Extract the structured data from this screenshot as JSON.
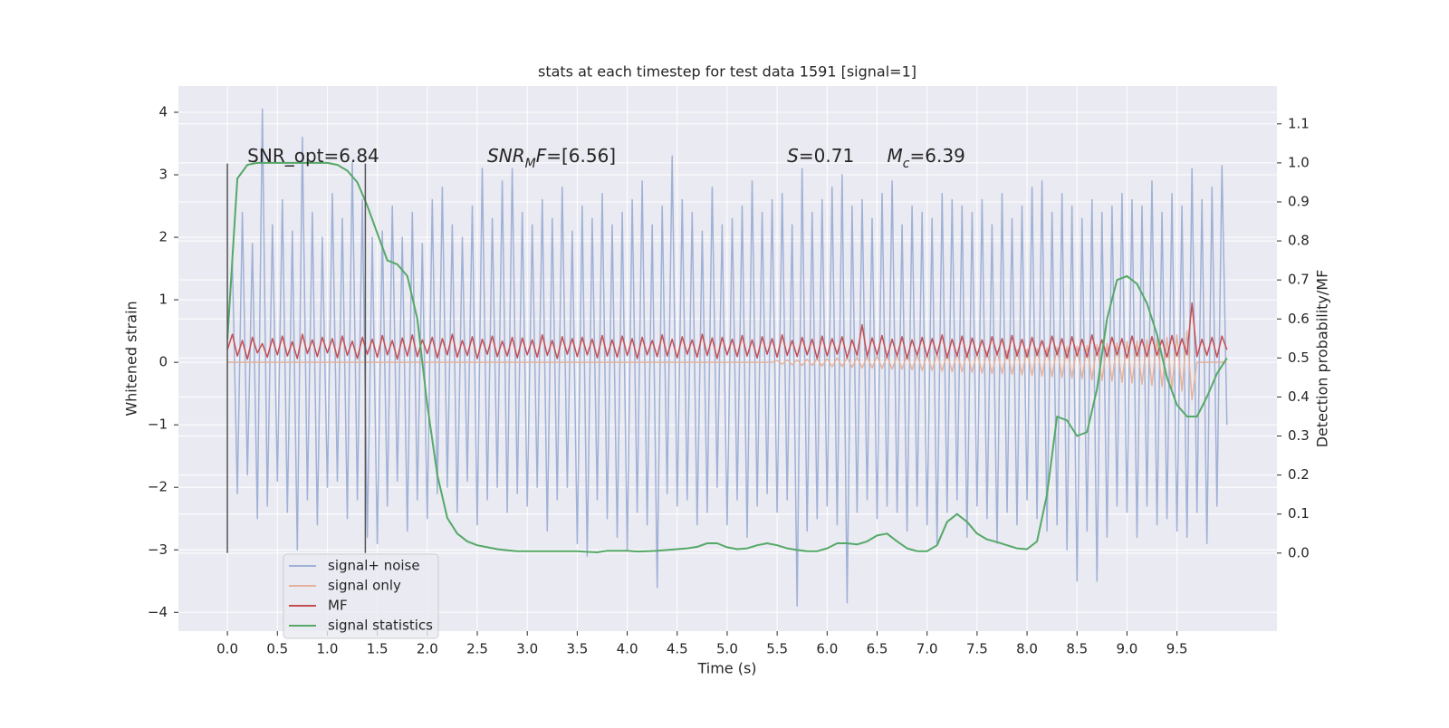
{
  "chart_data": {
    "type": "line",
    "title": "stats at each timestep for test data 1591 [signal=1]",
    "xlabel": "Time (s)",
    "ylabel": "Whitened strain",
    "y2label": "Detection probability/MF",
    "xlim": [
      -0.49,
      10.5
    ],
    "ylim": [
      -4.3,
      4.42
    ],
    "y2lim": [
      -0.2,
      1.197
    ],
    "xticks": [
      {
        "value": 0,
        "label": "0.0"
      },
      0.5,
      {
        "value": 1,
        "label": "1.0"
      },
      1.5,
      {
        "value": 2,
        "label": "2.0"
      },
      2.5,
      {
        "value": 3,
        "label": "3.0"
      },
      3.5,
      {
        "value": 4,
        "label": "4.0"
      },
      4.5,
      {
        "value": 5,
        "label": "5.0"
      },
      5.5,
      {
        "value": 6,
        "label": "6.0"
      },
      6.5,
      {
        "value": 7,
        "label": "7.0"
      },
      7.5,
      {
        "value": 8,
        "label": "8.0"
      },
      8.5,
      {
        "value": 9,
        "label": "9.0"
      },
      9.5
    ],
    "yticks": [
      {
        "value": -4,
        "label": "−4"
      },
      {
        "value": -3,
        "label": "−3"
      },
      {
        "value": -2,
        "label": "−2"
      },
      {
        "value": -1,
        "label": "−1"
      },
      0,
      1,
      2,
      3,
      4
    ],
    "y2ticks": [
      {
        "value": 0,
        "label": "0.0"
      },
      0.1,
      0.2,
      0.3,
      0.4,
      0.5,
      0.6,
      0.7,
      0.8,
      0.9,
      {
        "value": 1,
        "label": "1.0"
      },
      1.1
    ],
    "grid": true,
    "legend": "lower left",
    "x": [
      0,
      0.05,
      0.1,
      0.15,
      0.2,
      0.25,
      0.3,
      0.35,
      0.4,
      0.45,
      0.5,
      0.55,
      0.6,
      0.65,
      0.7,
      0.75,
      0.8,
      0.85,
      0.9,
      0.95,
      1,
      1.05,
      1.1,
      1.15,
      1.2,
      1.25,
      1.3,
      1.35,
      1.4,
      1.45,
      1.5,
      1.55,
      1.6,
      1.65,
      1.7,
      1.75,
      1.8,
      1.85,
      1.9,
      1.95,
      2,
      2.05,
      2.1,
      2.15,
      2.2,
      2.25,
      2.3,
      2.35,
      2.4,
      2.45,
      2.5,
      2.55,
      2.6,
      2.65,
      2.7,
      2.75,
      2.8,
      2.85,
      2.9,
      2.95,
      3,
      3.05,
      3.1,
      3.15,
      3.2,
      3.25,
      3.3,
      3.35,
      3.4,
      3.45,
      3.5,
      3.55,
      3.6,
      3.65,
      3.7,
      3.75,
      3.8,
      3.85,
      3.9,
      3.95,
      4,
      4.05,
      4.1,
      4.15,
      4.2,
      4.25,
      4.3,
      4.35,
      4.4,
      4.45,
      4.5,
      4.55,
      4.6,
      4.65,
      4.7,
      4.75,
      4.8,
      4.85,
      4.9,
      4.95,
      5,
      5.05,
      5.1,
      5.15,
      5.2,
      5.25,
      5.3,
      5.35,
      5.4,
      5.45,
      5.5,
      5.55,
      5.6,
      5.65,
      5.7,
      5.75,
      5.8,
      5.85,
      5.9,
      5.95,
      6,
      6.05,
      6.1,
      6.15,
      6.2,
      6.25,
      6.3,
      6.35,
      6.4,
      6.45,
      6.5,
      6.55,
      6.6,
      6.65,
      6.7,
      6.75,
      6.8,
      6.85,
      6.9,
      6.95,
      7,
      7.05,
      7.1,
      7.15,
      7.2,
      7.25,
      7.3,
      7.35,
      7.4,
      7.45,
      7.5,
      7.55,
      7.6,
      7.65,
      7.7,
      7.75,
      7.8,
      7.85,
      7.9,
      7.95,
      8,
      8.05,
      8.1,
      8.15,
      8.2,
      8.25,
      8.3,
      8.35,
      8.4,
      8.45,
      8.5,
      8.55,
      8.6,
      8.65,
      8.7,
      8.75,
      8.8,
      8.85,
      8.9,
      8.95,
      9,
      9.05,
      9.1,
      9.15,
      9.2,
      9.25,
      9.3,
      9.35,
      9.4,
      9.45,
      9.5,
      9.55,
      9.6,
      9.65,
      9.7,
      9.75,
      9.8,
      9.85,
      9.9,
      9.95,
      10
    ],
    "series": [
      {
        "name": "signal+ noise",
        "color": "#9fb1d6",
        "values": [
          0.3,
          1.6,
          -2.1,
          2.4,
          -1.8,
          1.9,
          -2.5,
          4.05,
          -2.3,
          2.2,
          -1.9,
          2.6,
          -2.4,
          2.1,
          -3.0,
          3.6,
          -2.2,
          2.4,
          -2.6,
          2.0,
          -2.0,
          2.7,
          -1.9,
          2.3,
          -2.5,
          3.2,
          -2.2,
          2.6,
          -2.8,
          2.0,
          -2.9,
          2.1,
          -2.3,
          2.5,
          -1.9,
          2.0,
          -2.7,
          2.4,
          -2.2,
          1.9,
          -2.5,
          2.6,
          -2.1,
          2.8,
          -2.0,
          2.2,
          -2.4,
          2.0,
          -1.9,
          2.5,
          -2.6,
          3.1,
          -2.2,
          2.3,
          -2.0,
          2.9,
          -2.4,
          3.1,
          -2.1,
          2.4,
          -2.3,
          2.2,
          -2.0,
          2.6,
          -2.7,
          2.3,
          -2.2,
          2.8,
          -2.0,
          2.1,
          -2.9,
          2.5,
          -3.1,
          2.3,
          -2.2,
          2.7,
          -2.5,
          2.2,
          -2.8,
          2.4,
          -3.0,
          2.6,
          -2.4,
          2.9,
          -2.6,
          2.2,
          -3.6,
          2.5,
          -2.1,
          3.3,
          -2.3,
          2.6,
          -2.2,
          2.4,
          -2.6,
          2.1,
          -2.4,
          2.8,
          -2.0,
          2.2,
          -2.6,
          2.3,
          -2.2,
          2.5,
          -2.8,
          2.9,
          -2.3,
          2.4,
          -2.1,
          2.6,
          -2.4,
          2.7,
          -2.2,
          2.2,
          -3.9,
          3.1,
          -2.7,
          2.4,
          -2.5,
          2.6,
          -2.3,
          2.8,
          -2.6,
          3.0,
          -3.85,
          2.5,
          -2.4,
          2.6,
          -2.2,
          2.3,
          -2.5,
          2.7,
          -2.3,
          2.9,
          -2.4,
          2.2,
          -2.7,
          2.5,
          -2.3,
          2.4,
          -2.6,
          2.3,
          -2.9,
          2.7,
          -2.4,
          2.6,
          -2.2,
          2.5,
          -2.8,
          2.4,
          -2.3,
          2.6,
          -2.5,
          2.2,
          -2.9,
          2.7,
          -2.4,
          2.3,
          -2.6,
          2.5,
          -2.2,
          2.8,
          -2.5,
          2.9,
          -2.7,
          2.4,
          -2.6,
          2.7,
          -3.0,
          2.5,
          -3.5,
          2.3,
          -2.7,
          2.6,
          -3.5,
          2.4,
          -2.8,
          2.5,
          -2.3,
          2.7,
          -2.4,
          2.6,
          -2.8,
          2.5,
          -2.3,
          2.9,
          -2.6,
          2.4,
          -2.5,
          2.7,
          -2.7,
          2.5,
          -2.8,
          3.1,
          -2.4,
          2.6,
          -2.9,
          2.8,
          -2.3,
          3.15,
          -1.0
        ]
      },
      {
        "name": "signal only",
        "color": "#e4b39f",
        "values": [
          0,
          0,
          0,
          0,
          0,
          0,
          0,
          0,
          0,
          0,
          0,
          0,
          0,
          0,
          0,
          0,
          0,
          0,
          0,
          0,
          0,
          0,
          0,
          0,
          0,
          0,
          0,
          0,
          0,
          0,
          0,
          0,
          0,
          0,
          0,
          0,
          0,
          0,
          0,
          0,
          0,
          0,
          0,
          0,
          0,
          0,
          0,
          0,
          0,
          0,
          0,
          0,
          0,
          0,
          0,
          0,
          0,
          0,
          0,
          0,
          0,
          0,
          0,
          0,
          0,
          0,
          0,
          0,
          0,
          0,
          0,
          0,
          0,
          0,
          0,
          0,
          0,
          0,
          0,
          0,
          0,
          0,
          0,
          0,
          0,
          0,
          0,
          0,
          0,
          0,
          0,
          0,
          0,
          0,
          0,
          0,
          0,
          0,
          0,
          0,
          0,
          0,
          0,
          0,
          0,
          0,
          0,
          0,
          0,
          0,
          0.03,
          -0.03,
          0.04,
          -0.04,
          0.04,
          -0.05,
          0.05,
          -0.05,
          0.06,
          -0.06,
          0.06,
          -0.07,
          0.07,
          -0.07,
          0.08,
          -0.08,
          0.08,
          -0.09,
          0.09,
          -0.09,
          0.1,
          -0.1,
          0.1,
          -0.11,
          0.11,
          -0.11,
          0.12,
          -0.12,
          0.12,
          -0.13,
          0.13,
          -0.13,
          0.14,
          -0.14,
          0.14,
          -0.15,
          0.15,
          -0.15,
          0.16,
          -0.16,
          0.16,
          -0.17,
          0.17,
          -0.18,
          0.18,
          -0.18,
          0.19,
          -0.19,
          0.2,
          -0.2,
          0.21,
          -0.21,
          0.22,
          -0.22,
          0.23,
          -0.23,
          0.24,
          -0.24,
          0.25,
          -0.25,
          0.26,
          -0.26,
          0.27,
          -0.28,
          0.28,
          -0.29,
          0.3,
          -0.3,
          0.31,
          -0.32,
          0.33,
          -0.33,
          0.34,
          -0.35,
          0.36,
          -0.37,
          0.38,
          -0.39,
          0.4,
          -0.42,
          0.44,
          -0.46,
          0.5,
          -0.6,
          0,
          0,
          0,
          0,
          0,
          0,
          0
        ]
      },
      {
        "name": "MF",
        "color": "#c44e52",
        "values": [
          0.2,
          0.45,
          0.1,
          0.35,
          0.05,
          0.4,
          0.15,
          0.3,
          0.08,
          0.38,
          0.12,
          0.42,
          0.1,
          0.33,
          0.06,
          0.45,
          0.14,
          0.36,
          0.09,
          0.4,
          0.15,
          0.38,
          0.07,
          0.42,
          0.11,
          0.34,
          0.06,
          0.4,
          0.13,
          0.37,
          0.08,
          0.43,
          0.12,
          0.35,
          0.05,
          0.39,
          0.1,
          0.44,
          0.09,
          0.36,
          0.14,
          0.4,
          0.07,
          0.38,
          0.12,
          0.45,
          0.08,
          0.35,
          0.11,
          0.41,
          0.06,
          0.37,
          0.13,
          0.42,
          0.09,
          0.34,
          0.1,
          0.4,
          0.07,
          0.39,
          0.12,
          0.36,
          0.08,
          0.44,
          0.11,
          0.35,
          0.06,
          0.41,
          0.13,
          0.38,
          0.09,
          0.4,
          0.12,
          0.37,
          0.07,
          0.43,
          0.1,
          0.36,
          0.08,
          0.42,
          0.11,
          0.38,
          0.06,
          0.4,
          0.12,
          0.35,
          0.09,
          0.44,
          0.1,
          0.37,
          0.07,
          0.41,
          0.13,
          0.36,
          0.08,
          0.45,
          0.11,
          0.39,
          0.06,
          0.4,
          0.12,
          0.37,
          0.09,
          0.43,
          0.1,
          0.36,
          0.07,
          0.41,
          0.13,
          0.38,
          0.08,
          0.44,
          0.11,
          0.35,
          0.09,
          0.4,
          0.12,
          0.37,
          0.06,
          0.42,
          0.1,
          0.38,
          0.13,
          0.41,
          0.07,
          0.36,
          0.11,
          0.6,
          0.09,
          0.39,
          0.12,
          0.43,
          0.08,
          0.37,
          0.1,
          0.41,
          0.06,
          0.36,
          0.11,
          0.4,
          0.09,
          0.38,
          0.12,
          0.44,
          0.07,
          0.37,
          0.1,
          0.42,
          0.08,
          0.39,
          0.11,
          0.36,
          0.09,
          0.41,
          0.12,
          0.38,
          0.06,
          0.43,
          0.1,
          0.37,
          0.08,
          0.4,
          0.11,
          0.35,
          0.09,
          0.42,
          0.12,
          0.38,
          0.07,
          0.41,
          0.1,
          0.37,
          0.08,
          0.44,
          0.11,
          0.36,
          0.09,
          0.4,
          0.12,
          0.38,
          0.07,
          0.42,
          0.1,
          0.37,
          0.09,
          0.41,
          0.11,
          0.36,
          0.08,
          0.43,
          0.1,
          0.38,
          0.12,
          0.95,
          0.09,
          0.37,
          0.11,
          0.4,
          0.08,
          0.42,
          0.2
        ]
      },
      {
        "name": "signal statistics",
        "color": "#55a868",
        "axis": "y2",
        "x": [
          0,
          0.1,
          0.2,
          0.3,
          0.4,
          0.5,
          0.6,
          0.7,
          0.8,
          0.9,
          1,
          1.1,
          1.2,
          1.3,
          1.4,
          1.5,
          1.6,
          1.7,
          1.8,
          1.9,
          2,
          2.1,
          2.2,
          2.3,
          2.4,
          2.5,
          2.6,
          2.7,
          2.8,
          2.9,
          3,
          3.1,
          3.2,
          3.3,
          3.4,
          3.5,
          3.6,
          3.7,
          3.8,
          3.9,
          4,
          4.1,
          4.2,
          4.3,
          4.4,
          4.5,
          4.6,
          4.7,
          4.8,
          4.9,
          5,
          5.1,
          5.2,
          5.3,
          5.4,
          5.5,
          5.6,
          5.7,
          5.8,
          5.9,
          6,
          6.1,
          6.2,
          6.3,
          6.4,
          6.5,
          6.6,
          6.7,
          6.8,
          6.9,
          7,
          7.1,
          7.2,
          7.3,
          7.4,
          7.5,
          7.6,
          7.7,
          7.8,
          7.9,
          8,
          8.1,
          8.2,
          8.3,
          8.4,
          8.5,
          8.6,
          8.7,
          8.8,
          8.9,
          9,
          9.1,
          9.2,
          9.3,
          9.4,
          9.5,
          9.6,
          9.7,
          9.8,
          9.9,
          10
        ],
        "values": [
          0.55,
          0.96,
          0.995,
          1,
          1,
          1,
          1,
          1,
          1,
          1,
          1,
          0.995,
          0.98,
          0.95,
          0.89,
          0.82,
          0.75,
          0.74,
          0.71,
          0.6,
          0.38,
          0.2,
          0.09,
          0.05,
          0.03,
          0.02,
          0.015,
          0.01,
          0.007,
          0.005,
          0.005,
          0.005,
          0.005,
          0.005,
          0.005,
          0.005,
          0.003,
          0.002,
          0.006,
          0.006,
          0.006,
          0.004,
          0.005,
          0.006,
          0.008,
          0.01,
          0.012,
          0.016,
          0.025,
          0.025,
          0.015,
          0.01,
          0.012,
          0.02,
          0.025,
          0.02,
          0.012,
          0.008,
          0.005,
          0.005,
          0.012,
          0.025,
          0.025,
          0.022,
          0.03,
          0.045,
          0.05,
          0.03,
          0.012,
          0.005,
          0.005,
          0.02,
          0.08,
          0.1,
          0.08,
          0.05,
          0.035,
          0.028,
          0.02,
          0.012,
          0.01,
          0.03,
          0.15,
          0.35,
          0.34,
          0.3,
          0.31,
          0.42,
          0.6,
          0.7,
          0.71,
          0.69,
          0.64,
          0.56,
          0.45,
          0.38,
          0.35,
          0.35,
          0.4,
          0.46,
          0.5
        ]
      }
    ],
    "vlines": {
      "x": [
        0,
        1.38
      ],
      "ymin": -3.05,
      "ymax": 3.18,
      "color": "#555555"
    },
    "annotations": [
      {
        "x": 0.2,
        "y": 3.29,
        "parts": [
          {
            "text": "SNR_opt=6.84"
          }
        ]
      },
      {
        "x": 2.6,
        "y": 3.29,
        "parts": [
          {
            "text": "SNR",
            "italic": true
          },
          {
            "text": "M",
            "italic": true,
            "sub": true
          },
          {
            "text": "F",
            "italic": true
          },
          {
            "text": "=[6.56]"
          }
        ]
      },
      {
        "x": 5.6,
        "y": 3.29,
        "parts": [
          {
            "text": "S",
            "italic": true
          },
          {
            "text": "=0.71"
          }
        ]
      },
      {
        "x": 6.6,
        "y": 3.29,
        "parts": [
          {
            "text": "M",
            "italic": true
          },
          {
            "text": "c",
            "italic": true,
            "sub": true
          },
          {
            "text": "=6.39"
          }
        ]
      }
    ]
  }
}
